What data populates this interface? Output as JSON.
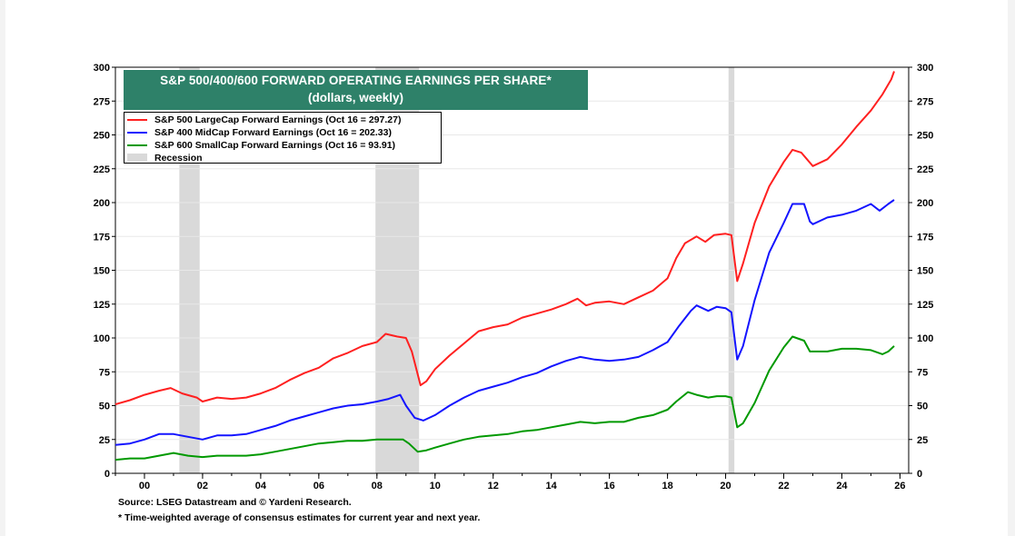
{
  "chart_data": {
    "type": "line",
    "title": "S&P 500/400/600 FORWARD OPERATING EARNINGS PER SHARE*",
    "subtitle": "(dollars, weekly)",
    "ylim": [
      0,
      300
    ],
    "yticks": [
      0,
      25,
      50,
      75,
      100,
      125,
      150,
      175,
      200,
      225,
      250,
      275,
      300
    ],
    "xlim": [
      1999.0,
      2026.3
    ],
    "xticks": [
      {
        "year": 2000,
        "label": "00"
      },
      {
        "year": 2002,
        "label": "02"
      },
      {
        "year": 2004,
        "label": "04"
      },
      {
        "year": 2006,
        "label": "06"
      },
      {
        "year": 2008,
        "label": "08"
      },
      {
        "year": 2010,
        "label": "10"
      },
      {
        "year": 2012,
        "label": "12"
      },
      {
        "year": 2014,
        "label": "14"
      },
      {
        "year": 2016,
        "label": "16"
      },
      {
        "year": 2018,
        "label": "18"
      },
      {
        "year": 2020,
        "label": "20"
      },
      {
        "year": 2022,
        "label": "22"
      },
      {
        "year": 2024,
        "label": "24"
      },
      {
        "year": 2026,
        "label": "26"
      }
    ],
    "recessions": [
      [
        2001.2,
        2001.9
      ],
      [
        2007.95,
        2009.45
      ],
      [
        2020.1,
        2020.3
      ]
    ],
    "series": [
      {
        "name": "S&P 500 LargeCap Forward Earnings (Oct 16 = 297.27)",
        "color": "#ff2020",
        "points": [
          [
            1999.0,
            51
          ],
          [
            1999.5,
            54
          ],
          [
            2000.0,
            58
          ],
          [
            2000.5,
            61
          ],
          [
            2000.9,
            63
          ],
          [
            2001.3,
            59
          ],
          [
            2001.8,
            56
          ],
          [
            2002.0,
            53
          ],
          [
            2002.5,
            56
          ],
          [
            2003.0,
            55
          ],
          [
            2003.5,
            56
          ],
          [
            2004.0,
            59
          ],
          [
            2004.5,
            63
          ],
          [
            2005.0,
            69
          ],
          [
            2005.5,
            74
          ],
          [
            2006.0,
            78
          ],
          [
            2006.5,
            85
          ],
          [
            2007.0,
            89
          ],
          [
            2007.5,
            94
          ],
          [
            2008.0,
            97
          ],
          [
            2008.3,
            103
          ],
          [
            2008.7,
            101
          ],
          [
            2009.0,
            100
          ],
          [
            2009.2,
            90
          ],
          [
            2009.5,
            65
          ],
          [
            2009.7,
            68
          ],
          [
            2010.0,
            77
          ],
          [
            2010.5,
            87
          ],
          [
            2011.0,
            96
          ],
          [
            2011.5,
            105
          ],
          [
            2012.0,
            108
          ],
          [
            2012.5,
            110
          ],
          [
            2013.0,
            115
          ],
          [
            2013.5,
            118
          ],
          [
            2014.0,
            121
          ],
          [
            2014.5,
            125
          ],
          [
            2014.9,
            129
          ],
          [
            2015.2,
            124
          ],
          [
            2015.5,
            126
          ],
          [
            2016.0,
            127
          ],
          [
            2016.5,
            125
          ],
          [
            2017.0,
            130
          ],
          [
            2017.5,
            135
          ],
          [
            2018.0,
            144
          ],
          [
            2018.3,
            159
          ],
          [
            2018.6,
            170
          ],
          [
            2019.0,
            175
          ],
          [
            2019.3,
            171
          ],
          [
            2019.6,
            176
          ],
          [
            2020.0,
            177
          ],
          [
            2020.2,
            176
          ],
          [
            2020.4,
            142
          ],
          [
            2020.6,
            155
          ],
          [
            2021.0,
            185
          ],
          [
            2021.5,
            212
          ],
          [
            2022.0,
            230
          ],
          [
            2022.3,
            239
          ],
          [
            2022.6,
            237
          ],
          [
            2022.8,
            232
          ],
          [
            2023.0,
            227
          ],
          [
            2023.5,
            232
          ],
          [
            2024.0,
            243
          ],
          [
            2024.5,
            256
          ],
          [
            2025.0,
            268
          ],
          [
            2025.4,
            280
          ],
          [
            2025.7,
            291
          ],
          [
            2025.8,
            297
          ]
        ]
      },
      {
        "name": "S&P 400 MidCap Forward Earnings (Oct 16 = 202.33)",
        "color": "#1414ff",
        "points": [
          [
            1999.0,
            21
          ],
          [
            1999.5,
            22
          ],
          [
            2000.0,
            25
          ],
          [
            2000.5,
            29
          ],
          [
            2001.0,
            29
          ],
          [
            2001.5,
            27
          ],
          [
            2002.0,
            25
          ],
          [
            2002.5,
            28
          ],
          [
            2003.0,
            28
          ],
          [
            2003.5,
            29
          ],
          [
            2004.0,
            32
          ],
          [
            2004.5,
            35
          ],
          [
            2005.0,
            39
          ],
          [
            2005.5,
            42
          ],
          [
            2006.0,
            45
          ],
          [
            2006.5,
            48
          ],
          [
            2007.0,
            50
          ],
          [
            2007.5,
            51
          ],
          [
            2008.0,
            53
          ],
          [
            2008.4,
            55
          ],
          [
            2008.8,
            58
          ],
          [
            2009.0,
            50
          ],
          [
            2009.3,
            41
          ],
          [
            2009.6,
            39
          ],
          [
            2010.0,
            43
          ],
          [
            2010.5,
            50
          ],
          [
            2011.0,
            56
          ],
          [
            2011.5,
            61
          ],
          [
            2012.0,
            64
          ],
          [
            2012.5,
            67
          ],
          [
            2013.0,
            71
          ],
          [
            2013.5,
            74
          ],
          [
            2014.0,
            79
          ],
          [
            2014.5,
            83
          ],
          [
            2015.0,
            86
          ],
          [
            2015.5,
            84
          ],
          [
            2016.0,
            83
          ],
          [
            2016.5,
            84
          ],
          [
            2017.0,
            86
          ],
          [
            2017.5,
            91
          ],
          [
            2018.0,
            97
          ],
          [
            2018.4,
            109
          ],
          [
            2018.8,
            120
          ],
          [
            2019.0,
            124
          ],
          [
            2019.4,
            120
          ],
          [
            2019.7,
            123
          ],
          [
            2020.0,
            122
          ],
          [
            2020.2,
            119
          ],
          [
            2020.4,
            84
          ],
          [
            2020.6,
            94
          ],
          [
            2021.0,
            128
          ],
          [
            2021.5,
            163
          ],
          [
            2022.0,
            185
          ],
          [
            2022.3,
            199
          ],
          [
            2022.7,
            199
          ],
          [
            2022.9,
            186
          ],
          [
            2023.0,
            184
          ],
          [
            2023.5,
            189
          ],
          [
            2024.0,
            191
          ],
          [
            2024.5,
            194
          ],
          [
            2025.0,
            199
          ],
          [
            2025.3,
            194
          ],
          [
            2025.6,
            199
          ],
          [
            2025.8,
            202
          ]
        ]
      },
      {
        "name": "S&P 600 SmallCap Forward Earnings (Oct 16 = 93.91)",
        "color": "#009900",
        "points": [
          [
            1999.0,
            10
          ],
          [
            1999.5,
            11
          ],
          [
            2000.0,
            11
          ],
          [
            2000.5,
            13
          ],
          [
            2001.0,
            15
          ],
          [
            2001.5,
            13
          ],
          [
            2002.0,
            12
          ],
          [
            2002.5,
            13
          ],
          [
            2003.0,
            13
          ],
          [
            2003.5,
            13
          ],
          [
            2004.0,
            14
          ],
          [
            2004.5,
            16
          ],
          [
            2005.0,
            18
          ],
          [
            2005.5,
            20
          ],
          [
            2006.0,
            22
          ],
          [
            2006.5,
            23
          ],
          [
            2007.0,
            24
          ],
          [
            2007.5,
            24
          ],
          [
            2008.0,
            25
          ],
          [
            2008.5,
            25
          ],
          [
            2008.9,
            25
          ],
          [
            2009.1,
            22
          ],
          [
            2009.4,
            16
          ],
          [
            2009.7,
            17
          ],
          [
            2010.0,
            19
          ],
          [
            2010.5,
            22
          ],
          [
            2011.0,
            25
          ],
          [
            2011.5,
            27
          ],
          [
            2012.0,
            28
          ],
          [
            2012.5,
            29
          ],
          [
            2013.0,
            31
          ],
          [
            2013.5,
            32
          ],
          [
            2014.0,
            34
          ],
          [
            2014.5,
            36
          ],
          [
            2015.0,
            38
          ],
          [
            2015.5,
            37
          ],
          [
            2016.0,
            38
          ],
          [
            2016.5,
            38
          ],
          [
            2017.0,
            41
          ],
          [
            2017.5,
            43
          ],
          [
            2018.0,
            47
          ],
          [
            2018.3,
            53
          ],
          [
            2018.7,
            60
          ],
          [
            2019.0,
            58
          ],
          [
            2019.4,
            56
          ],
          [
            2019.7,
            57
          ],
          [
            2020.0,
            57
          ],
          [
            2020.2,
            56
          ],
          [
            2020.4,
            34
          ],
          [
            2020.6,
            37
          ],
          [
            2021.0,
            52
          ],
          [
            2021.5,
            76
          ],
          [
            2022.0,
            93
          ],
          [
            2022.3,
            101
          ],
          [
            2022.7,
            98
          ],
          [
            2022.9,
            90
          ],
          [
            2023.0,
            90
          ],
          [
            2023.5,
            90
          ],
          [
            2024.0,
            92
          ],
          [
            2024.5,
            92
          ],
          [
            2025.0,
            91
          ],
          [
            2025.4,
            88
          ],
          [
            2025.6,
            90
          ],
          [
            2025.8,
            94
          ]
        ]
      }
    ],
    "legend": [
      {
        "label": "S&P 500 LargeCap Forward Earnings (Oct 16 = 297.27)",
        "color": "#ff2020"
      },
      {
        "label": "S&P 400 MidCap Forward Earnings (Oct 16 = 202.33)",
        "color": "#1414ff"
      },
      {
        "label": "S&P 600 SmallCap Forward Earnings (Oct 16 = 93.91)",
        "color": "#009900"
      },
      {
        "label": "Recession",
        "color": "#d9d9d9"
      }
    ]
  },
  "footer": {
    "source": "Source: LSEG Datastream and © Yardeni Research.",
    "note": "* Time-weighted average of consensus estimates for current year and next year."
  }
}
